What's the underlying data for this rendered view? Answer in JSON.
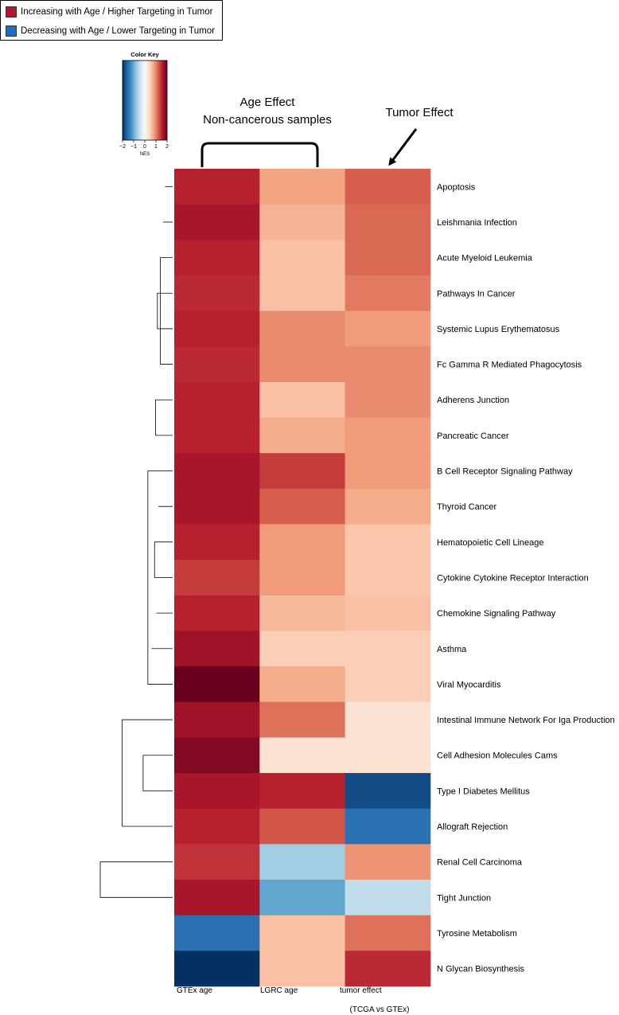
{
  "legend": {
    "items": [
      {
        "label": "Increasing with Age / Higher Targeting in Tumor",
        "color": "#b2182b"
      },
      {
        "label": "Decreasing with Age / Lower Targeting in Tumor",
        "color": "#1f6fbf"
      }
    ]
  },
  "annotations": {
    "age_effect_line1": "Age Effect",
    "age_effect_line2": "Non-cancerous samples",
    "tumor_effect": "Tumor Effect",
    "tumor_subtitle": "(TCGA vs GTEx)"
  },
  "chart_data": {
    "type": "heatmap",
    "title": "",
    "color_key": {
      "title": "Color Key",
      "xlabel": "NES",
      "range": [
        -2,
        2
      ],
      "ticks": [
        "-2",
        "-1",
        "0",
        "1",
        "2"
      ],
      "colors": [
        "#053061",
        "#2166ac",
        "#4393c3",
        "#92c5de",
        "#d1e5f0",
        "#f7f7f7",
        "#fddbc7",
        "#f4a582",
        "#d6604d",
        "#b2182b",
        "#67001f"
      ]
    },
    "columns": [
      "GTEx age",
      "LGRC age",
      "tumor effect"
    ],
    "rows": [
      "Apoptosis",
      "Leishmania Infection",
      "Acute Myeloid Leukemia",
      "Pathways In Cancer",
      "Systemic Lupus Erythematosus",
      "Fc Gamma R Mediated Phagocytosis",
      "Adherens Junction",
      "Pancreatic Cancer",
      "B Cell Receptor Signaling Pathway",
      "Thyroid Cancer",
      "Hematopoietic Cell Lineage",
      "Cytokine Cytokine Receptor Interaction",
      "Chemokine Signaling Pathway",
      "Asthma",
      "Viral Myocarditis",
      "Intestinal Immune Network For Iga Production",
      "Cell Adhesion Molecules Cams",
      "Type I Diabetes Mellitus",
      "Allograft Rejection",
      "Renal Cell Carcinoma",
      "Tight Junction",
      "Tyrosine Metabolism",
      "N Glycan Biosynthesis"
    ],
    "values": [
      [
        1.55,
        0.8,
        1.2
      ],
      [
        1.65,
        0.7,
        1.15
      ],
      [
        1.55,
        0.6,
        1.15
      ],
      [
        1.5,
        0.6,
        1.05
      ],
      [
        1.55,
        0.95,
        0.85
      ],
      [
        1.5,
        0.95,
        0.95
      ],
      [
        1.55,
        0.6,
        0.95
      ],
      [
        1.55,
        0.75,
        0.85
      ],
      [
        1.65,
        1.4,
        0.85
      ],
      [
        1.65,
        1.2,
        0.75
      ],
      [
        1.55,
        0.85,
        0.55
      ],
      [
        1.4,
        0.85,
        0.55
      ],
      [
        1.55,
        0.65,
        0.6
      ],
      [
        1.7,
        0.5,
        0.5
      ],
      [
        2.0,
        0.75,
        0.5
      ],
      [
        1.7,
        1.1,
        0.3
      ],
      [
        1.85,
        0.3,
        0.3
      ],
      [
        1.65,
        1.55,
        -1.8
      ],
      [
        1.55,
        1.25,
        -1.5
      ],
      [
        1.45,
        -0.7,
        0.9
      ],
      [
        1.65,
        -1.05,
        -0.5
      ],
      [
        -1.5,
        0.6,
        1.1
      ],
      [
        -2.0,
        0.6,
        1.5
      ]
    ],
    "dendrogram": {
      "merges": [
        [
          0,
          1
        ],
        [
          -1,
          2
        ],
        [
          -2,
          3
        ],
        [
          4,
          5
        ],
        [
          6,
          7
        ],
        [
          -5,
          -4
        ],
        [
          -6,
          -3
        ],
        [
          8,
          9
        ],
        [
          -8,
          -7
        ],
        [
          10,
          11
        ],
        [
          -10,
          12
        ],
        [
          13,
          14
        ],
        [
          -11,
          -12
        ],
        [
          -13,
          15
        ],
        [
          -14,
          16
        ],
        [
          -15,
          -9
        ],
        [
          17,
          18
        ],
        [
          19,
          20
        ],
        [
          -17,
          -18
        ],
        [
          -19,
          -16
        ],
        [
          21,
          22
        ],
        [
          -20,
          -21
        ]
      ],
      "heights": [
        0.2,
        0.8,
        1.0,
        1.0,
        0.9,
        1.6,
        1.3,
        0.9,
        1.8,
        1.2,
        1.5,
        1.4,
        1.9,
        1.7,
        2.2,
        2.6,
        1.5,
        2.3,
        3.1,
        5.3,
        1.7,
        7.6
      ]
    }
  }
}
